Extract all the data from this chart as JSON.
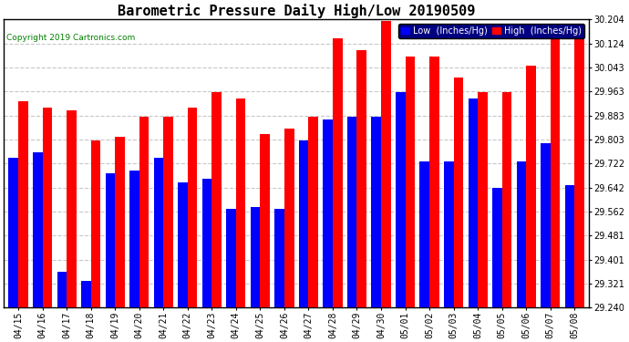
{
  "title": "Barometric Pressure Daily High/Low 20190509",
  "copyright": "Copyright 2019 Cartronics.com",
  "legend_low": "Low  (Inches/Hg)",
  "legend_high": "High  (Inches/Hg)",
  "dates": [
    "04/15",
    "04/16",
    "04/17",
    "04/18",
    "04/19",
    "04/20",
    "04/21",
    "04/22",
    "04/23",
    "04/24",
    "04/25",
    "04/26",
    "04/27",
    "04/28",
    "04/29",
    "04/30",
    "05/01",
    "05/02",
    "05/03",
    "05/04",
    "05/05",
    "05/06",
    "05/07",
    "05/08"
  ],
  "low_values": [
    29.741,
    29.761,
    29.36,
    29.33,
    29.69,
    29.7,
    29.741,
    29.66,
    29.67,
    29.57,
    29.575,
    29.57,
    29.8,
    29.87,
    29.88,
    29.88,
    29.96,
    29.73,
    29.73,
    29.94,
    29.64,
    29.73,
    29.79,
    29.65
  ],
  "high_values": [
    29.93,
    29.91,
    29.9,
    29.8,
    29.81,
    29.88,
    29.88,
    29.91,
    29.96,
    29.94,
    29.82,
    29.84,
    29.88,
    30.14,
    30.1,
    30.2,
    30.08,
    30.08,
    30.01,
    29.96,
    29.96,
    30.05,
    30.18,
    30.16
  ],
  "low_color": "#0000ff",
  "high_color": "#ff0000",
  "bg_color": "#ffffff",
  "plot_bg_color": "#ffffff",
  "grid_color": "#c8c8c8",
  "ylim_min": 29.24,
  "ylim_max": 30.204,
  "yticks": [
    29.24,
    29.321,
    29.401,
    29.481,
    29.562,
    29.642,
    29.722,
    29.803,
    29.883,
    29.963,
    30.043,
    30.124,
    30.204
  ],
  "title_fontsize": 11,
  "tick_fontsize": 7,
  "bar_width": 0.4,
  "figwidth": 6.9,
  "figheight": 3.75,
  "dpi": 100
}
